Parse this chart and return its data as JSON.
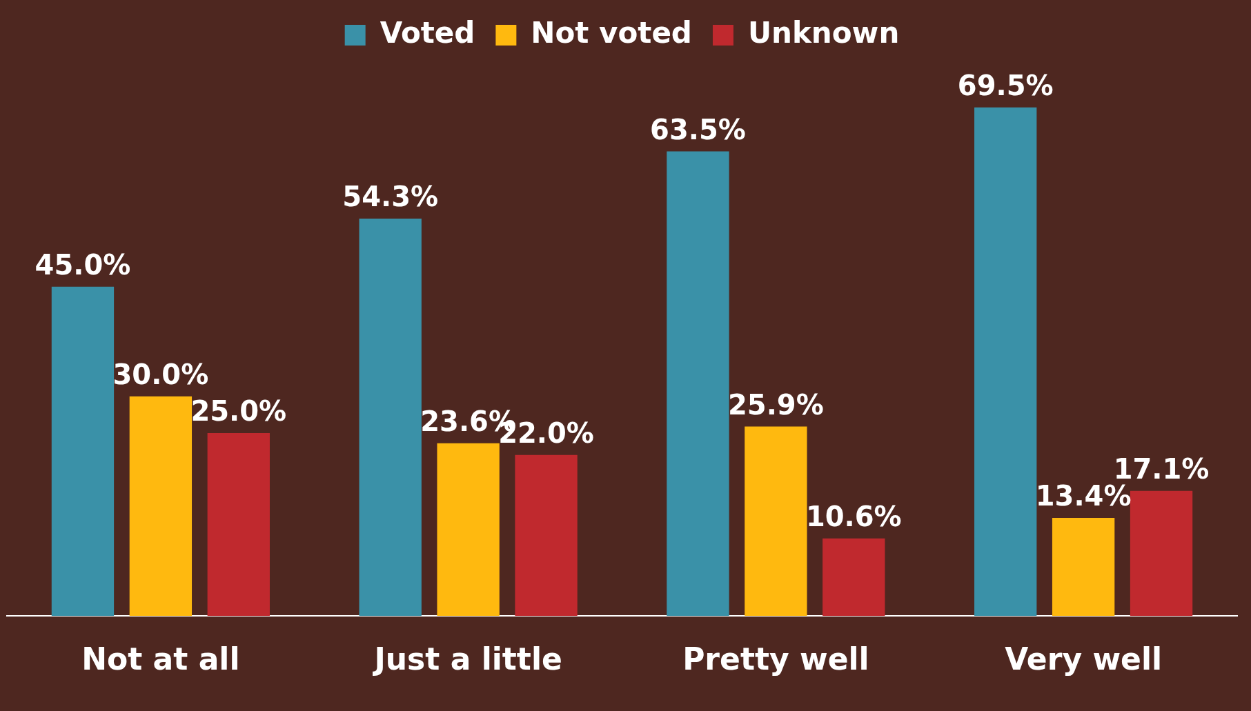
{
  "chart_data": {
    "type": "bar",
    "categories": [
      "Not at all",
      "Just a little",
      "Pretty well",
      "Very well"
    ],
    "series": [
      {
        "name": "Voted",
        "color": "#3a91a8",
        "values": [
          45.0,
          54.3,
          63.5,
          69.5
        ],
        "value_labels": [
          "45.0%",
          "54.3%",
          "63.5%",
          "69.5%"
        ]
      },
      {
        "name": "Not voted",
        "color": "#ffb90f",
        "values": [
          30.0,
          23.6,
          25.9,
          13.4
        ],
        "value_labels": [
          "30.0%",
          "23.6%",
          "25.9%",
          "13.4%"
        ]
      },
      {
        "name": "Unknown",
        "color": "#c0292e",
        "values": [
          25.0,
          22.0,
          10.6,
          17.1
        ],
        "value_labels": [
          "25.0%",
          "22.0%",
          "10.6%",
          "17.1%"
        ]
      }
    ],
    "legend": "top",
    "grid": false
  }
}
